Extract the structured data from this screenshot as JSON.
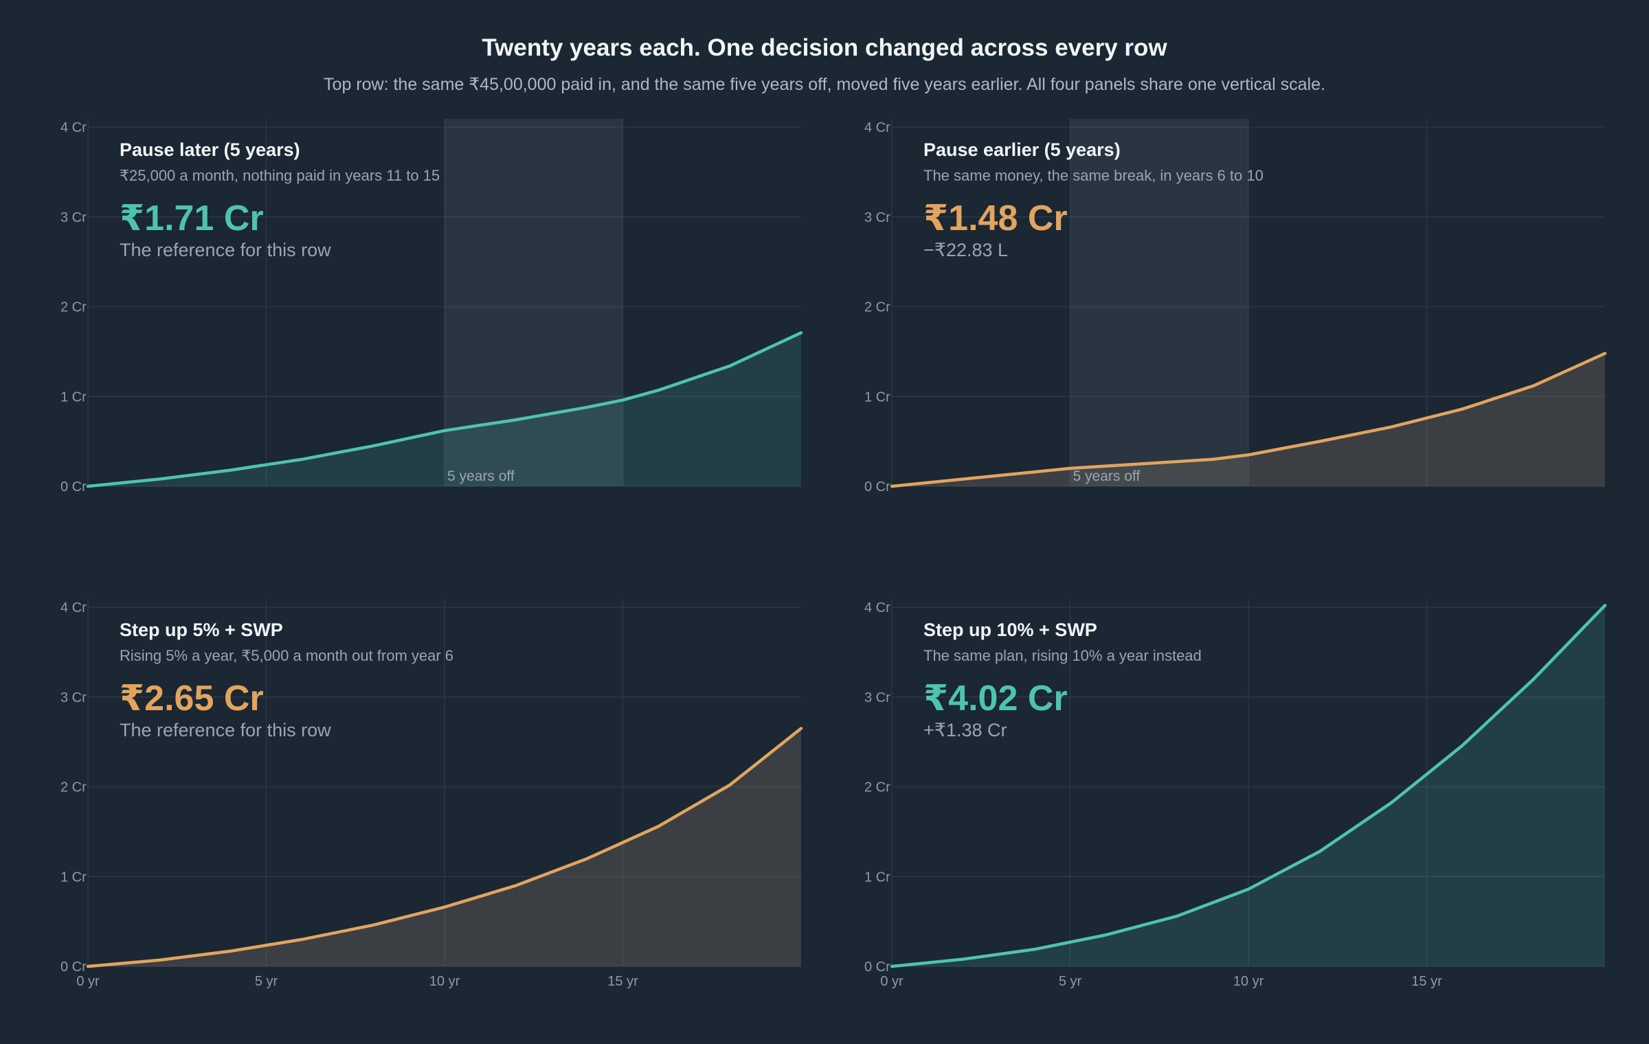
{
  "header": {
    "title": "Twenty years each. One decision changed across every row",
    "subtitle": "Top row: the same ₹45,00,000 paid in, and the same five years off, moved five years earlier. All four panels share one vertical scale."
  },
  "colors": {
    "teal": "#4ec3b0",
    "orange": "#e2a45e",
    "background": "#1b2733",
    "pause_band": "#2a3843"
  },
  "chart_data": [
    {
      "type": "area",
      "id": "pause-later",
      "title": "Pause later (5 years)",
      "subtitle": "₹25,000 a month, nothing paid in years 11 to 15",
      "value_label": "₹1.71 Cr",
      "note": "The reference for this row",
      "color": "teal",
      "x_unit": "yr",
      "y_unit": "Cr",
      "xlim": [
        0,
        20
      ],
      "ylim": [
        0,
        4
      ],
      "x_ticks": [
        0,
        5,
        10,
        15
      ],
      "x_tick_labels": [
        "0 yr",
        "5 yr",
        "10 yr",
        "15 yr"
      ],
      "y_ticks": [
        0,
        1,
        2,
        3,
        4
      ],
      "y_tick_labels": [
        "0 Cr",
        "1 Cr",
        "2 Cr",
        "3 Cr",
        "4 Cr"
      ],
      "show_x_tick_labels": false,
      "pause": {
        "start": 10,
        "end": 15,
        "label": "5 years off"
      },
      "x": [
        0,
        2,
        4,
        6,
        8,
        10,
        12,
        14,
        15,
        16,
        18,
        20
      ],
      "y": [
        0,
        0.08,
        0.18,
        0.3,
        0.45,
        0.62,
        0.74,
        0.88,
        0.96,
        1.07,
        1.34,
        1.71
      ]
    },
    {
      "type": "area",
      "id": "pause-earlier",
      "title": "Pause earlier (5 years)",
      "subtitle": "The same money, the same break, in years 6 to 10",
      "value_label": "₹1.48 Cr",
      "note": "−₹22.83 L",
      "color": "orange",
      "x_unit": "yr",
      "y_unit": "Cr",
      "xlim": [
        0,
        20
      ],
      "ylim": [
        0,
        4
      ],
      "x_ticks": [
        0,
        5,
        10,
        15
      ],
      "x_tick_labels": [
        "0 yr",
        "5 yr",
        "10 yr",
        "15 yr"
      ],
      "y_ticks": [
        0,
        1,
        2,
        3,
        4
      ],
      "y_tick_labels": [
        "0 Cr",
        "1 Cr",
        "2 Cr",
        "3 Cr",
        "4 Cr"
      ],
      "show_x_tick_labels": false,
      "pause": {
        "start": 5,
        "end": 10,
        "label": "5 years off"
      },
      "x": [
        0,
        2,
        4,
        5,
        7,
        9,
        10,
        12,
        14,
        16,
        18,
        20
      ],
      "y": [
        0,
        0.08,
        0.16,
        0.2,
        0.25,
        0.3,
        0.35,
        0.5,
        0.66,
        0.86,
        1.12,
        1.48
      ]
    },
    {
      "type": "area",
      "id": "step-up-5",
      "title": "Step up 5% + SWP",
      "subtitle": "Rising 5% a year, ₹5,000 a month out from year 6",
      "value_label": "₹2.65 Cr",
      "note": "The reference for this row",
      "color": "orange",
      "x_unit": "yr",
      "y_unit": "Cr",
      "xlim": [
        0,
        20
      ],
      "ylim": [
        0,
        4
      ],
      "x_ticks": [
        0,
        5,
        10,
        15
      ],
      "x_tick_labels": [
        "0 yr",
        "5 yr",
        "10 yr",
        "15 yr"
      ],
      "y_ticks": [
        0,
        1,
        2,
        3,
        4
      ],
      "y_tick_labels": [
        "0 Cr",
        "1 Cr",
        "2 Cr",
        "3 Cr",
        "4 Cr"
      ],
      "show_x_tick_labels": true,
      "pause": null,
      "x": [
        0,
        2,
        4,
        6,
        8,
        10,
        12,
        14,
        16,
        18,
        20
      ],
      "y": [
        0,
        0.07,
        0.17,
        0.3,
        0.46,
        0.66,
        0.9,
        1.2,
        1.56,
        2.02,
        2.65
      ]
    },
    {
      "type": "area",
      "id": "step-up-10",
      "title": "Step up 10% + SWP",
      "subtitle": "The same plan, rising 10% a year instead",
      "value_label": "₹4.02 Cr",
      "note": "+₹1.38 Cr",
      "color": "teal",
      "x_unit": "yr",
      "y_unit": "Cr",
      "xlim": [
        0,
        20
      ],
      "ylim": [
        0,
        4
      ],
      "x_ticks": [
        0,
        5,
        10,
        15
      ],
      "x_tick_labels": [
        "0 yr",
        "5 yr",
        "10 yr",
        "15 yr"
      ],
      "y_ticks": [
        0,
        1,
        2,
        3,
        4
      ],
      "y_tick_labels": [
        "0 Cr",
        "1 Cr",
        "2 Cr",
        "3 Cr",
        "4 Cr"
      ],
      "show_x_tick_labels": true,
      "pause": null,
      "x": [
        0,
        2,
        4,
        6,
        8,
        10,
        12,
        14,
        16,
        18,
        20
      ],
      "y": [
        0,
        0.08,
        0.19,
        0.35,
        0.56,
        0.86,
        1.28,
        1.82,
        2.46,
        3.2,
        4.02
      ]
    }
  ]
}
